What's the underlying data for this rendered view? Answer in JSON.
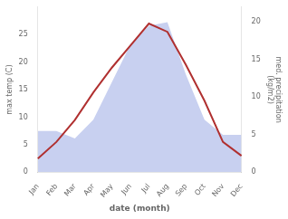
{
  "chart_data": {
    "type": "line",
    "xlabel": "date (month)",
    "ylabel": "max temp (C)",
    "y2label": "med. precipitation\n(kg/m2)",
    "categories": [
      "Jan",
      "Feb",
      "Mar",
      "Apr",
      "May",
      "Jun",
      "Jul",
      "Aug",
      "Sep",
      "Oct",
      "Nov",
      "Dec"
    ],
    "series": [
      {
        "type": "area",
        "axis": "y2",
        "color": "#c8d0f0",
        "values": [
          5.5,
          5.5,
          4.5,
          7.0,
          12.0,
          17.0,
          19.5,
          20.0,
          13.0,
          7.0,
          5.0,
          5.0
        ]
      },
      {
        "type": "line",
        "color": "#b03030",
        "values": [
          2.5,
          5.5,
          9.5,
          14.5,
          19.0,
          23.0,
          27.0,
          25.5,
          19.5,
          13.0,
          5.5,
          3.0
        ]
      }
    ],
    "ylim": [
      0,
      30
    ],
    "yticks": [
      0,
      5,
      10,
      15,
      20,
      25
    ],
    "y2lim": [
      0,
      22
    ],
    "y2ticks": [
      0,
      5,
      10,
      15,
      20
    ],
    "grid": false
  }
}
